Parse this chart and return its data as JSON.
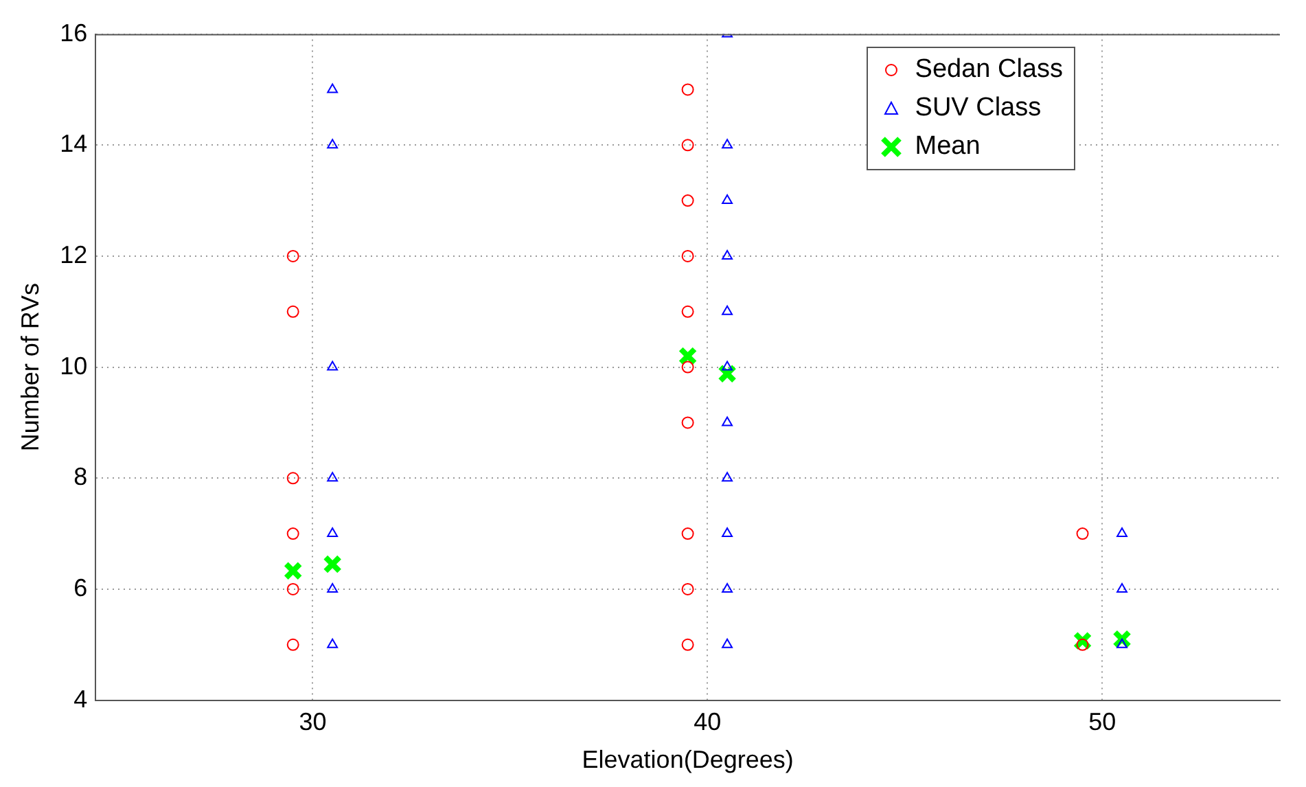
{
  "chart_data": {
    "type": "scatter",
    "xlabel": "Elevation(Degrees)",
    "ylabel": "Number of RVs",
    "xlim": [
      24.5,
      54.5
    ],
    "xticks": [
      30,
      40,
      50
    ],
    "ylim": [
      4,
      16
    ],
    "yticks": [
      4,
      6,
      8,
      10,
      12,
      14,
      16
    ],
    "grid": true,
    "legend": "top right",
    "series": [
      {
        "name": "Sedan Class",
        "color": "#ff0000",
        "marker": "circle",
        "x": [
          29.5,
          29.5,
          29.5,
          29.5,
          29.5,
          29.5,
          39.5,
          39.5,
          39.5,
          39.5,
          39.5,
          39.5,
          39.5,
          39.5,
          39.5,
          39.5,
          49.5,
          49.5
        ],
        "values": [
          12,
          11,
          8,
          7,
          6,
          5,
          15,
          14,
          13,
          12,
          11,
          10,
          9,
          7,
          6,
          5,
          7,
          5
        ]
      },
      {
        "name": "SUV Class",
        "color": "#0000ff",
        "marker": "triangle",
        "x": [
          30.5,
          30.5,
          30.5,
          30.5,
          30.5,
          30.5,
          30.5,
          40.5,
          40.5,
          40.5,
          40.5,
          40.5,
          40.5,
          40.5,
          40.5,
          40.5,
          40.5,
          40.5,
          50.5,
          50.5,
          50.5
        ],
        "values": [
          15,
          14,
          10,
          8,
          7,
          6,
          5,
          16,
          14,
          13,
          12,
          11,
          10,
          9,
          8,
          7,
          6,
          5,
          7,
          6,
          5
        ]
      },
      {
        "name": "Mean",
        "color": "#00ff00",
        "marker": "cross",
        "x": [
          29.5,
          30.5,
          39.5,
          40.5,
          49.5,
          50.5
        ],
        "values": [
          6.33,
          6.45,
          10.2,
          9.88,
          5.07,
          5.1
        ]
      }
    ]
  }
}
